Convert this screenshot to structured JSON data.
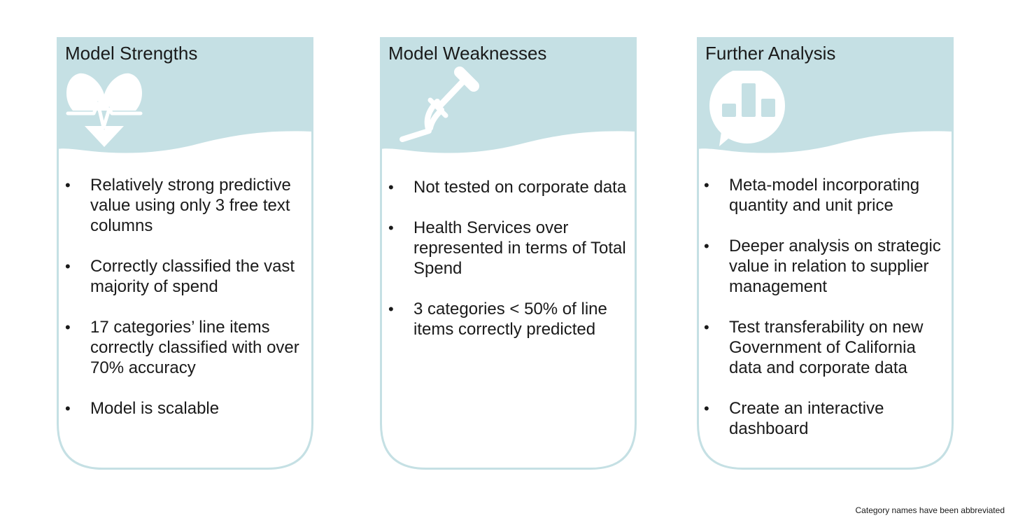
{
  "cards": [
    {
      "title": "Model Strengths",
      "icon": "heartbeat-icon",
      "items": [
        "Relatively strong predictive value using only 3 free text columns",
        "Correctly classified the vast majority of spend",
        "17 categories’ line items correctly classified with over 70% accuracy",
        "Model is scalable"
      ]
    },
    {
      "title": "Model Weaknesses",
      "icon": "crutch-icon",
      "items": [
        "Not tested on corporate data",
        "Health Services over represented in terms of Total Spend",
        "3 categories < 50% of line items correctly predicted"
      ]
    },
    {
      "title": "Further Analysis",
      "icon": "chart-speech-bubble-icon",
      "items": [
        "Meta-model incorporating quantity and unit price",
        "Deeper analysis on strategic value in relation to supplier management",
        "Test transferability on new Government of California data and corporate data",
        "Create an interactive dashboard"
      ]
    }
  ],
  "footnote": "Category names have been abbreviated",
  "colors": {
    "header": "#c5e0e4",
    "border": "#c5e0e4",
    "text": "#1a1a1a"
  }
}
